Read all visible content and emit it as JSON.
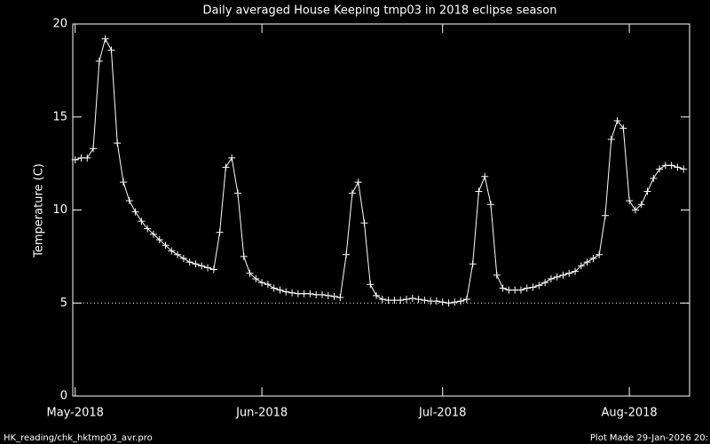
{
  "chart_data": {
    "type": "line",
    "title": "Daily averaged House Keeping tmp03 in 2018 eclipse season",
    "ylabel": "Temperature (C)",
    "footer_left": "HK_reading/chk_hktmp03_avr.pro",
    "footer_right": "Plot Made 29-Jan-2026 20:",
    "x": [
      0,
      1,
      2,
      3,
      4,
      5,
      6,
      7,
      8,
      9,
      10,
      11,
      12,
      13,
      14,
      15,
      16,
      17,
      18,
      19,
      20,
      21,
      22,
      23,
      24,
      25,
      26,
      27,
      28,
      29,
      30,
      31,
      32,
      33,
      34,
      35,
      36,
      37,
      38,
      39,
      40,
      41,
      42,
      43,
      44,
      45,
      46,
      47,
      48,
      49,
      50,
      51,
      52,
      53,
      54,
      55,
      56,
      57,
      58,
      59,
      60,
      61,
      62,
      63,
      64,
      65,
      66,
      67,
      68,
      69,
      70,
      71,
      72,
      73,
      74,
      75,
      76,
      77,
      78,
      79,
      80,
      81,
      82,
      83,
      84,
      85,
      86,
      87,
      88,
      89,
      90,
      91,
      92,
      93,
      94,
      95,
      96,
      97,
      98,
      99,
      100,
      101
    ],
    "values": [
      12.7,
      12.8,
      12.8,
      13.3,
      18.0,
      19.2,
      18.6,
      13.6,
      11.5,
      10.5,
      9.9,
      9.4,
      9.0,
      8.7,
      8.4,
      8.1,
      7.8,
      7.6,
      7.4,
      7.2,
      7.1,
      7.0,
      6.9,
      6.8,
      8.8,
      12.3,
      12.8,
      10.9,
      7.5,
      6.6,
      6.3,
      6.1,
      6.0,
      5.8,
      5.7,
      5.6,
      5.55,
      5.5,
      5.5,
      5.5,
      5.45,
      5.45,
      5.4,
      5.35,
      5.3,
      7.6,
      10.9,
      11.5,
      9.3,
      6.0,
      5.4,
      5.2,
      5.15,
      5.15,
      5.15,
      5.2,
      5.25,
      5.2,
      5.15,
      5.1,
      5.1,
      5.05,
      5.0,
      5.05,
      5.1,
      5.2,
      7.1,
      11.0,
      11.8,
      10.3,
      6.5,
      5.8,
      5.7,
      5.7,
      5.7,
      5.8,
      5.85,
      5.95,
      6.1,
      6.3,
      6.4,
      6.5,
      6.6,
      6.7,
      7.0,
      7.2,
      7.4,
      7.6,
      9.7,
      13.8,
      14.8,
      14.4,
      10.5,
      10.0,
      10.3,
      11.0,
      11.7,
      12.2,
      12.4,
      12.4,
      12.3,
      12.2
    ],
    "color": "#ffffff",
    "reference_line": 5,
    "xlim": [
      -0.4,
      102
    ],
    "xticks": [
      {
        "value": 0,
        "label": "May-2018"
      },
      {
        "value": 31,
        "label": "Jun-2018"
      },
      {
        "value": 61,
        "label": "Jul-2018"
      },
      {
        "value": 92,
        "label": "Aug-2018"
      }
    ],
    "ylim": [
      0,
      20
    ],
    "yticks": [
      0,
      5,
      10,
      15,
      20
    ]
  }
}
